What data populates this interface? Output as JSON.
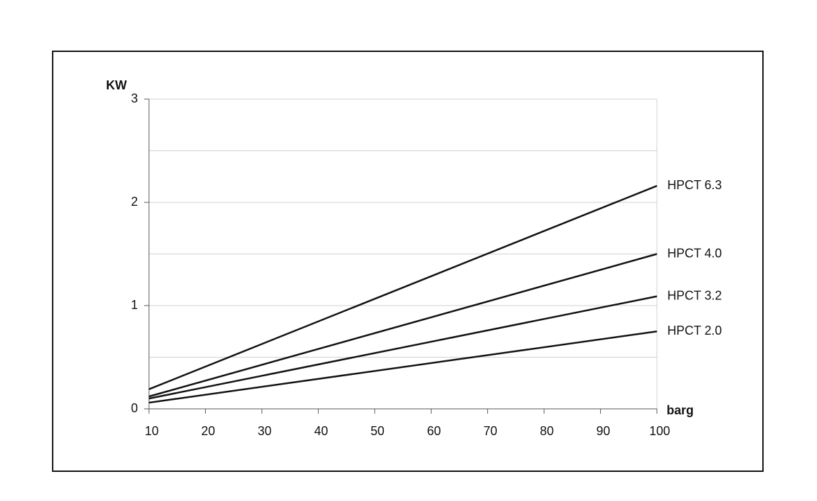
{
  "chart_data": {
    "type": "line",
    "y_label": "KW",
    "x_label": "barg",
    "x": [
      10,
      100
    ],
    "series": [
      {
        "name": "HPCT 6.3",
        "color": "#111111",
        "values": [
          0.19,
          2.16
        ]
      },
      {
        "name": "HPCT 4.0",
        "color": "#111111",
        "values": [
          0.12,
          1.5
        ]
      },
      {
        "name": "HPCT 3.2",
        "color": "#111111",
        "values": [
          0.1,
          1.09
        ]
      },
      {
        "name": "HPCT 2.0",
        "color": "#111111",
        "values": [
          0.06,
          0.75
        ]
      }
    ],
    "xlim": [
      10,
      100
    ],
    "xticks": [
      10,
      20,
      30,
      40,
      50,
      60,
      70,
      80,
      90,
      100
    ],
    "ylim": [
      0,
      3
    ],
    "yticks": [
      0,
      1,
      2,
      3
    ],
    "minor_yticks": [
      0.5,
      1.5,
      2.5
    ],
    "grid": true
  }
}
